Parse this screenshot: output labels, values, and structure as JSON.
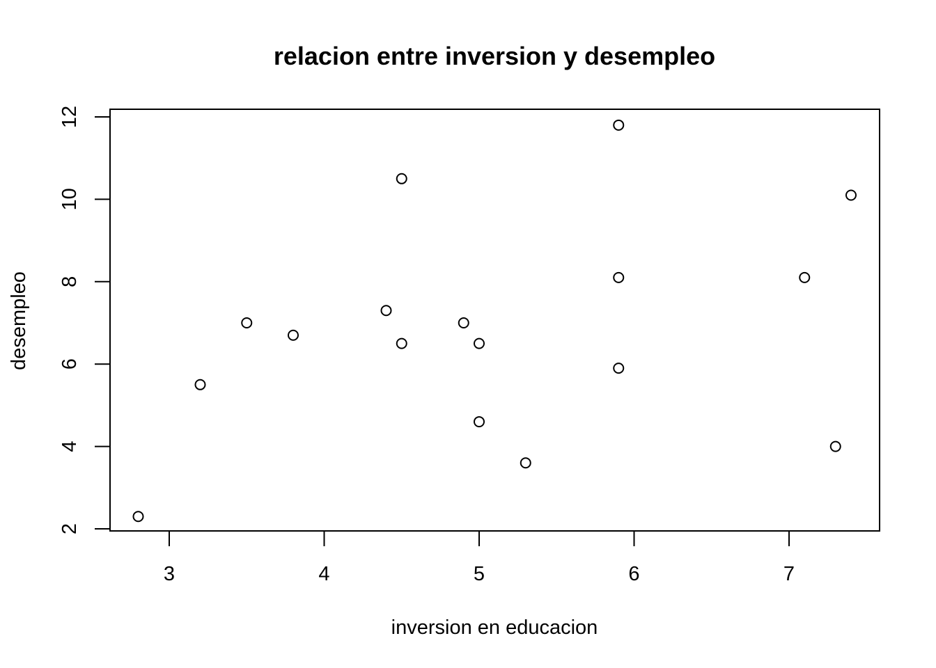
{
  "chart_data": {
    "type": "scatter",
    "title": "relacion entre inversion y desempleo",
    "xlabel": "inversion en educacion",
    "ylabel": "desempleo",
    "xlim": [
      2.8,
      7.4
    ],
    "ylim": [
      2.3,
      11.8
    ],
    "xticks": [
      3,
      4,
      5,
      6,
      7
    ],
    "yticks": [
      2,
      4,
      6,
      8,
      10,
      12
    ],
    "grid": false,
    "legend": "none",
    "marker": "open-circle",
    "points": [
      {
        "x": 2.8,
        "y": 2.3
      },
      {
        "x": 3.2,
        "y": 5.5
      },
      {
        "x": 3.5,
        "y": 7.0
      },
      {
        "x": 3.8,
        "y": 6.7
      },
      {
        "x": 4.4,
        "y": 7.3
      },
      {
        "x": 4.5,
        "y": 10.5
      },
      {
        "x": 4.5,
        "y": 6.5
      },
      {
        "x": 4.9,
        "y": 7.0
      },
      {
        "x": 5.0,
        "y": 6.5
      },
      {
        "x": 5.0,
        "y": 4.6
      },
      {
        "x": 5.3,
        "y": 3.6
      },
      {
        "x": 5.9,
        "y": 11.8
      },
      {
        "x": 5.9,
        "y": 8.1
      },
      {
        "x": 5.9,
        "y": 5.9
      },
      {
        "x": 7.1,
        "y": 8.1
      },
      {
        "x": 7.3,
        "y": 4.0
      },
      {
        "x": 7.4,
        "y": 10.1
      }
    ]
  }
}
